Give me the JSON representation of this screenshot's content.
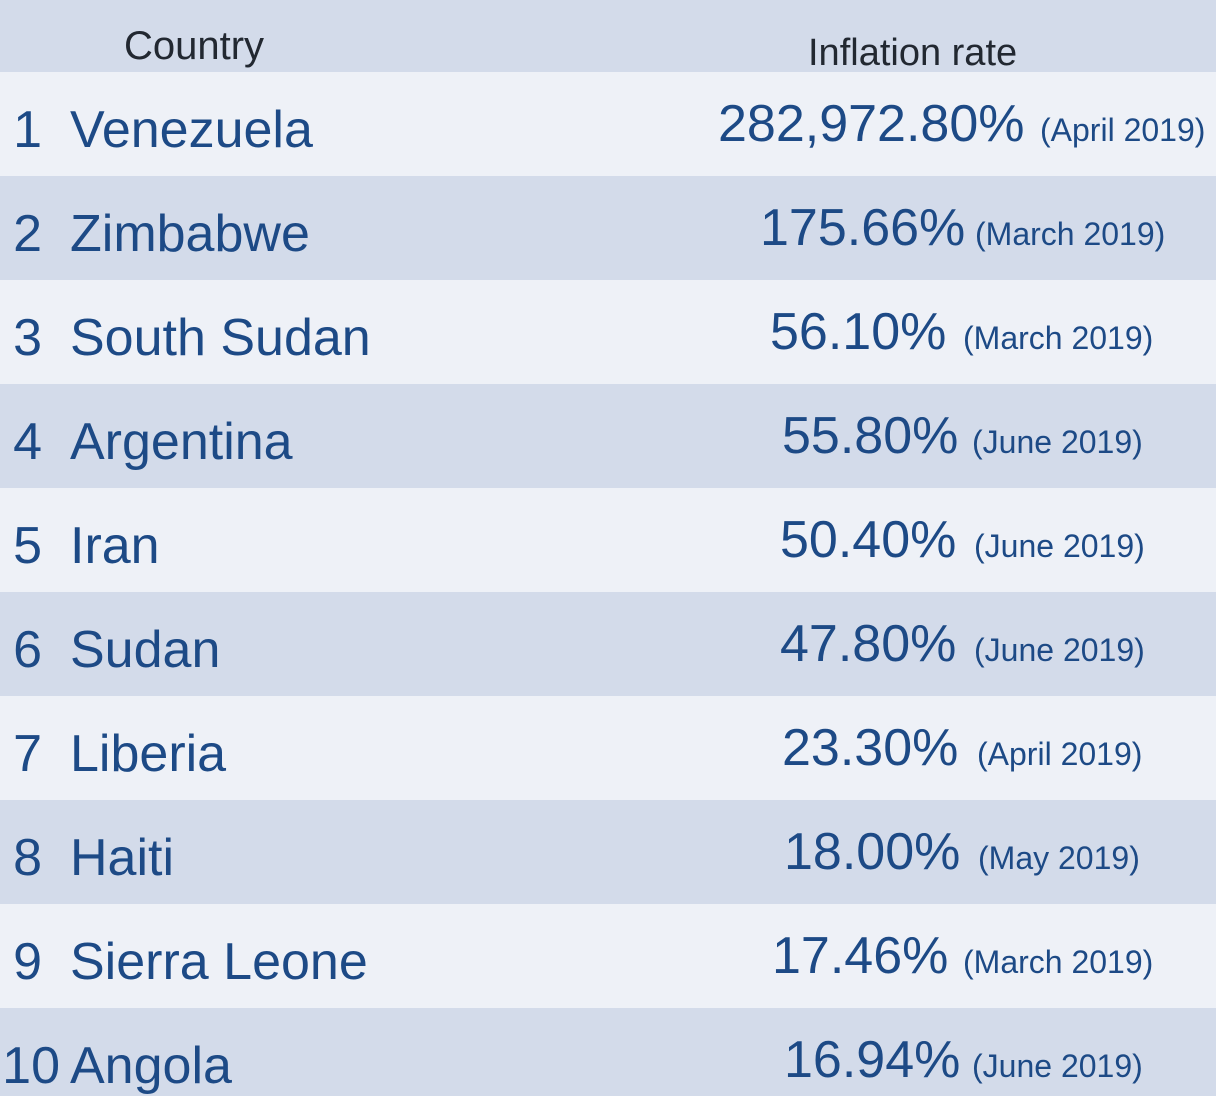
{
  "header": {
    "country": "Country",
    "inflation_rate": "Inflation rate"
  },
  "chart_data": {
    "type": "table",
    "columns": [
      "Country",
      "Inflation rate"
    ],
    "rows": [
      {
        "rank": "1",
        "country": "Venezuela",
        "rate": "282,972.80%",
        "date": "(April 2019)",
        "value": 282972.8
      },
      {
        "rank": "2",
        "country": "Zimbabwe",
        "rate": "175.66%",
        "date": "(March 2019)",
        "value": 175.66
      },
      {
        "rank": "3",
        "country": "South Sudan",
        "rate": "56.10%",
        "date": "(March 2019)",
        "value": 56.1
      },
      {
        "rank": "4",
        "country": "Argentina",
        "rate": "55.80%",
        "date": "(June 2019)",
        "value": 55.8
      },
      {
        "rank": "5",
        "country": "Iran",
        "rate": "50.40%",
        "date": "(June 2019)",
        "value": 50.4
      },
      {
        "rank": "6",
        "country": "Sudan",
        "rate": "47.80%",
        "date": "(June 2019)",
        "value": 47.8
      },
      {
        "rank": "7",
        "country": "Liberia",
        "rate": "23.30%",
        "date": "(April 2019)",
        "value": 23.3
      },
      {
        "rank": "8",
        "country": "Haiti",
        "rate": "18.00%",
        "date": "(May 2019)",
        "value": 18.0
      },
      {
        "rank": "9",
        "country": "Sierra Leone",
        "rate": "17.46%",
        "date": "(March 2019)",
        "value": 17.46
      },
      {
        "rank": "10",
        "country": "Angola",
        "rate": "16.94%",
        "date": "(June 2019)",
        "value": 16.94
      }
    ]
  },
  "colors": {
    "text": "#1d4a86",
    "header_text": "#222831",
    "row_light": "#eef1f7",
    "row_dark": "#d3dbea"
  }
}
